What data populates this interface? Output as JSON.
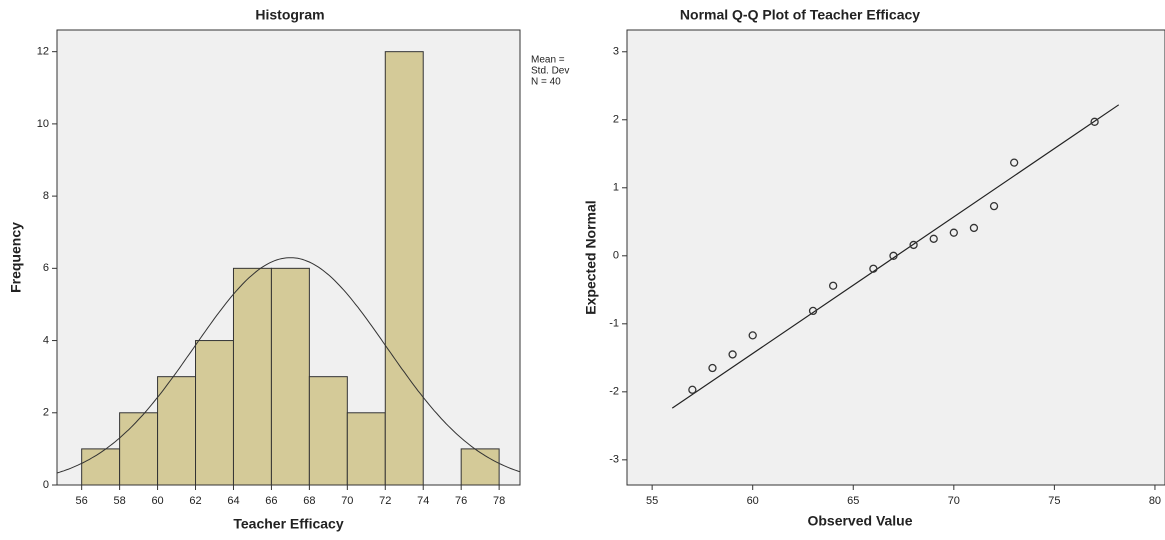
{
  "chart_data": [
    {
      "type": "histogram",
      "title": "Histogram",
      "x_label": "Teacher Efficacy",
      "y_label": "Frequency",
      "bins": [
        56,
        58,
        60,
        62,
        64,
        66,
        68,
        70,
        72,
        74,
        76,
        78
      ],
      "values": [
        1,
        2,
        3,
        4,
        6,
        6,
        3,
        2,
        12,
        0,
        1
      ],
      "color": "#d4ca98",
      "xlim": [
        54.7,
        79.1
      ],
      "ylim": [
        0,
        12.6
      ],
      "yticks": [
        0,
        2,
        4,
        6,
        8,
        10,
        12
      ],
      "normal_curve": {
        "mean": 67.0,
        "std_dev": 5.07
      },
      "annotations": [
        "Mean =",
        "Std. Dev",
        "N = 40"
      ]
    },
    {
      "type": "scatter",
      "title": "Normal Q-Q Plot of Teacher Efficacy",
      "x_label": "Observed Value",
      "y_label": "Expected Normal",
      "x": [
        57,
        58,
        59,
        60,
        63,
        64,
        66,
        67,
        68,
        69,
        70,
        71,
        72,
        73,
        77
      ],
      "values": [
        -1.97,
        -1.65,
        -1.45,
        -1.17,
        -0.81,
        -0.44,
        -0.19,
        0.0,
        0.16,
        0.25,
        0.34,
        0.41,
        0.73,
        1.37,
        1.97
      ],
      "reference_line": {
        "x": [
          56,
          78.2
        ],
        "y": [
          -2.24,
          2.22
        ]
      },
      "xlim": [
        53.75,
        80.5
      ],
      "ylim": [
        -3.37,
        3.32
      ],
      "xticks": [
        55,
        60,
        65,
        70,
        75,
        80
      ],
      "yticks": [
        -3,
        -2,
        -1,
        0,
        1,
        2,
        3
      ]
    }
  ]
}
